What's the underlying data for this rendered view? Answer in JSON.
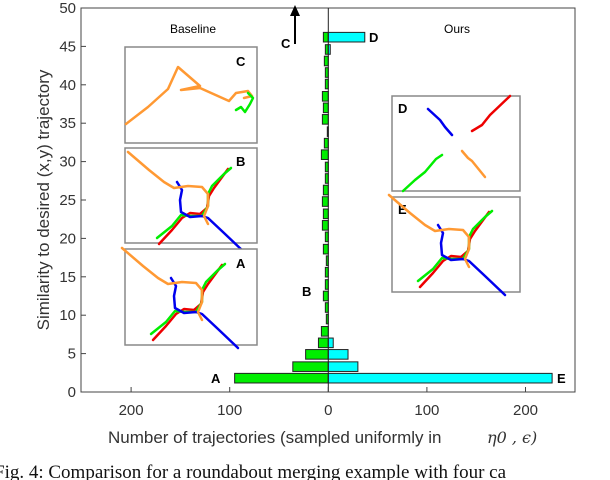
{
  "chart_data": {
    "type": "bar",
    "orientation": "horizontal back-to-back",
    "title": "",
    "xlabel": "Number of trajectories (sampled uniformly in",
    "xlabel_math": "η0 , ϵ)",
    "ylabel": "Similarity to desired (x,y) trajectory",
    "xlim": [
      -250,
      250
    ],
    "ylim": [
      0,
      50
    ],
    "xticks": [
      -200,
      -100,
      0,
      100,
      200
    ],
    "xtick_labels": [
      "200",
      "100",
      "0",
      "100",
      "200"
    ],
    "yticks": [
      0,
      5,
      10,
      15,
      20,
      25,
      30,
      35,
      40,
      45,
      50
    ],
    "ytick_labels": [
      "0",
      "5",
      "10",
      "15",
      "20",
      "25",
      "30",
      "35",
      "40",
      "45",
      "50"
    ],
    "grid": false,
    "y": [
      1.8,
      3.3,
      4.9,
      6.4,
      7.9,
      9.5,
      11.0,
      12.5,
      14.0,
      15.6,
      17.1,
      18.6,
      20.2,
      21.7,
      23.2,
      24.8,
      26.3,
      27.8,
      29.3,
      30.9,
      32.4,
      33.9,
      35.5,
      37.0,
      38.5,
      40.1,
      41.6,
      43.1,
      44.6,
      46.2
    ],
    "series": [
      {
        "name": "Baseline",
        "side": "left",
        "color": "#00ee00",
        "values": [
          95,
          36,
          23,
          10,
          7,
          2,
          3,
          5,
          3,
          3,
          2,
          5,
          3,
          6,
          5,
          6,
          5,
          3,
          3,
          7,
          4,
          1,
          6,
          5,
          6,
          3,
          3,
          4,
          3,
          5
        ]
      },
      {
        "name": "Ours",
        "side": "right",
        "color": "#00ffff",
        "values": [
          227,
          30,
          20,
          5,
          0,
          0,
          0,
          0,
          0,
          0,
          0,
          0,
          0,
          0,
          0,
          0,
          0,
          0,
          0,
          0,
          0,
          0,
          0,
          0,
          0,
          0,
          0,
          0,
          2,
          37
        ]
      }
    ],
    "annotations": {
      "A": "A",
      "B": "B",
      "C": "C",
      "D": "D",
      "E": "E"
    },
    "panel_titles": {
      "left": "Baseline",
      "right": "Ours"
    },
    "inset_labels": {
      "c": "C",
      "b": "B",
      "a": "A",
      "d": "D",
      "e": "E"
    },
    "trajectory_colors": {
      "orange": "#ff9933",
      "green": "#00ee00",
      "red": "#ee0000",
      "blue": "#0000ee"
    }
  },
  "caption": "Fig. 4: Comparison for a roundabout merging example with four ca"
}
